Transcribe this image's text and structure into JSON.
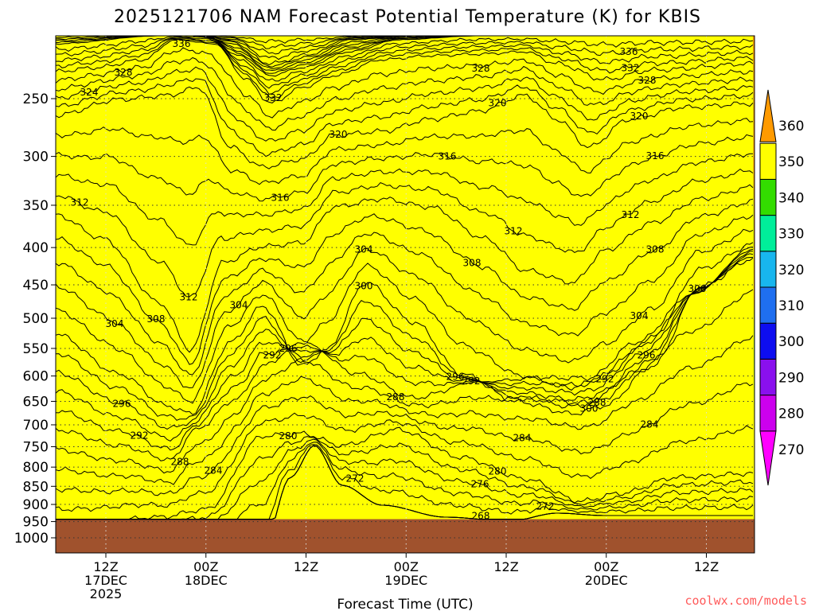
{
  "title": "2025121706 NAM Forecast Potential Temperature (K) for KBIS",
  "credit": "coolwx.com/models",
  "chart_data": {
    "type": "contour",
    "variable": "Potential Temperature (K)",
    "station": "KBIS",
    "model": "NAM",
    "init": "2025121706",
    "xlabel": "Forecast Time (UTC)",
    "ylabel": "",
    "y_axis": "pressure (hPa), inverted",
    "ylim": [
      1000,
      200
    ],
    "grid": true,
    "x_ticks": [
      {
        "top": "12Z",
        "mid": "17DEC",
        "bot": "2025"
      },
      {
        "top": "00Z",
        "mid": "18DEC",
        "bot": ""
      },
      {
        "top": "12Z",
        "mid": "",
        "bot": ""
      },
      {
        "top": "00Z",
        "mid": "19DEC",
        "bot": ""
      },
      {
        "top": "12Z",
        "mid": "",
        "bot": ""
      },
      {
        "top": "00Z",
        "mid": "20DEC",
        "bot": ""
      },
      {
        "top": "12Z",
        "mid": "",
        "bot": ""
      }
    ],
    "y_ticks": [
      250,
      300,
      350,
      400,
      450,
      500,
      550,
      600,
      650,
      700,
      750,
      800,
      850,
      900,
      950,
      1000
    ],
    "colorbar": {
      "levels": [
        270,
        280,
        290,
        300,
        310,
        320,
        330,
        340,
        350,
        360
      ],
      "colors": [
        "#ff00ff",
        "#cc00ee",
        "#8a10ee",
        "#0d0df0",
        "#1f6ff0",
        "#18b6ee",
        "#00ee9a",
        "#33dd00",
        "#ffff00",
        "#ff9a00"
      ]
    },
    "contour_labels": [
      "336",
      "328",
      "324",
      "332",
      "320",
      "316",
      "312",
      "308",
      "304",
      "300",
      "296",
      "292",
      "288",
      "284",
      "280",
      "276",
      "272",
      "268"
    ],
    "ground_color": "#a0522d"
  }
}
